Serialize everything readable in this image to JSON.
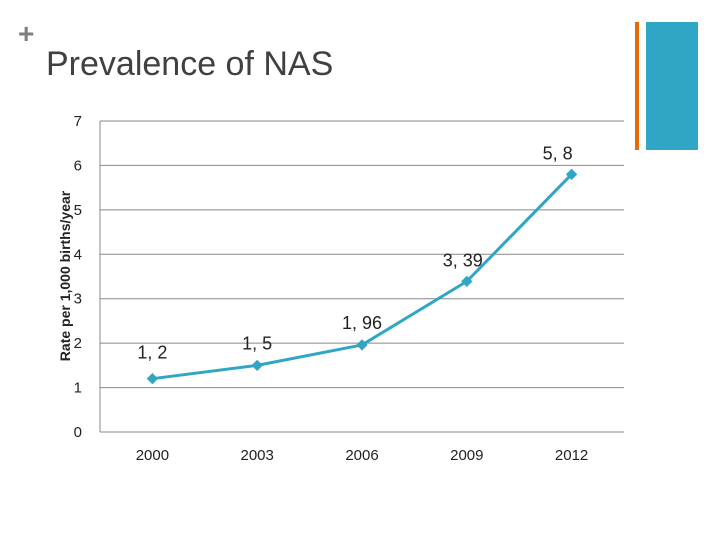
{
  "slide": {
    "bullet": "+",
    "title": "Prevalence of NAS"
  },
  "colors": {
    "accent_orange": "#e36c0a",
    "accent_teal": "#31a5c4",
    "series_line": "#31a5c4",
    "grid": "#888888"
  },
  "chart_data": {
    "type": "line",
    "title": "",
    "xlabel": "",
    "ylabel": "Rate per 1,000 births/year",
    "categories": [
      "2000",
      "2003",
      "2006",
      "2009",
      "2012"
    ],
    "series": [
      {
        "values": [
          1.2,
          1.5,
          1.96,
          3.39,
          5.8
        ]
      }
    ],
    "data_labels": [
      "1, 2",
      "1, 5",
      "1, 96",
      "3, 39",
      "5, 8"
    ],
    "ylim": [
      0,
      7
    ],
    "yticks": [
      0,
      1,
      2,
      3,
      4,
      5,
      6,
      7
    ],
    "grid": true,
    "legend": "none"
  }
}
